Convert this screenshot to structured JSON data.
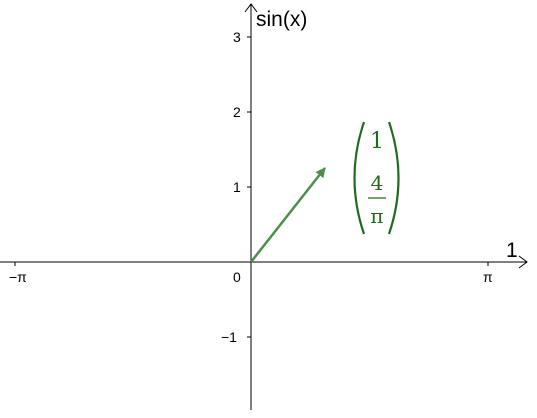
{
  "x_axis": {
    "label": "1",
    "ticks": [
      {
        "value": "neg_pi",
        "label": "−π"
      },
      {
        "value": "origin",
        "label": "0"
      },
      {
        "value": "pi",
        "label": "π"
      }
    ]
  },
  "y_axis": {
    "label": "sin(x)",
    "ticks": [
      {
        "value": 3,
        "label": "3"
      },
      {
        "value": 2,
        "label": "2"
      },
      {
        "value": 1,
        "label": "1"
      },
      {
        "value": -1,
        "label": "−1"
      }
    ]
  },
  "vector": {
    "color": "#4c8f4c",
    "components": {
      "top": "1",
      "fraction_numerator": "4",
      "fraction_denominator": "π"
    },
    "text_color": "#1e6b1e"
  }
}
